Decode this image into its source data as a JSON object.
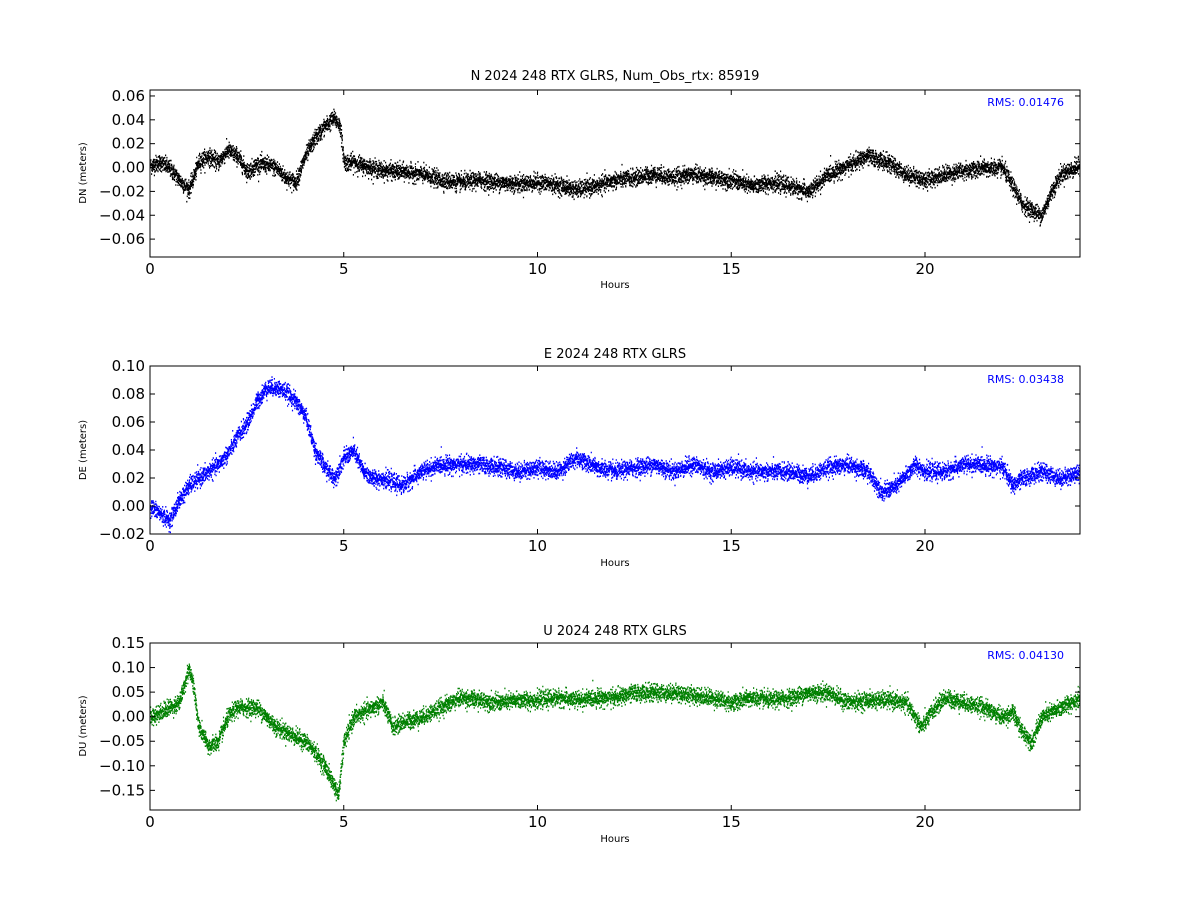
{
  "chart_data": [
    {
      "type": "scatter",
      "title": "N 2024 248 RTX  GLRS, Num_Obs_rtx: 85919",
      "xlabel": "Hours",
      "ylabel": "DN (meters)",
      "xlim": [
        0,
        24
      ],
      "ylim": [
        -0.075,
        0.065
      ],
      "xticks": [
        0,
        5,
        10,
        15,
        20
      ],
      "xtick_labels": [
        "0",
        "5",
        "10",
        "15",
        "20"
      ],
      "yticks": [
        -0.06,
        -0.04,
        -0.02,
        0.0,
        0.02,
        0.04,
        0.06
      ],
      "ytick_labels": [
        "−0.06",
        "−0.04",
        "−0.02",
        "0.00",
        "0.02",
        "0.04",
        "0.06"
      ],
      "annotation": "RMS:  0.01476",
      "annotation_color": "#0000ff",
      "color": "#000000",
      "grid": false,
      "series": [
        {
          "x": [
            0,
            0.25,
            0.5,
            0.75,
            1.0,
            1.25,
            1.5,
            1.75,
            2.0,
            2.25,
            2.5,
            2.75,
            3.0,
            3.25,
            3.5,
            3.75,
            4.0,
            4.25,
            4.5,
            4.75,
            4.9,
            5.0,
            5.25,
            5.5,
            6.0,
            6.5,
            7.0,
            7.5,
            8.0,
            8.5,
            9.0,
            9.5,
            10.0,
            10.5,
            11.0,
            11.5,
            12.0,
            12.5,
            13.0,
            13.5,
            14.0,
            14.5,
            15.0,
            15.5,
            16.0,
            16.5,
            17.0,
            17.5,
            18.0,
            18.5,
            19.0,
            19.5,
            20.0,
            20.5,
            21.0,
            21.5,
            22.0,
            22.5,
            22.75,
            23.0,
            23.25,
            23.5,
            24.0
          ],
          "y": [
            0.002,
            0.005,
            0.0,
            -0.01,
            -0.018,
            0.005,
            0.01,
            0.005,
            0.015,
            0.01,
            -0.003,
            0.003,
            0.003,
            0.0,
            -0.008,
            -0.012,
            0.01,
            0.025,
            0.035,
            0.042,
            0.035,
            0.005,
            0.005,
            0.002,
            -0.002,
            -0.003,
            -0.005,
            -0.01,
            -0.012,
            -0.01,
            -0.012,
            -0.013,
            -0.012,
            -0.014,
            -0.018,
            -0.015,
            -0.01,
            -0.008,
            -0.005,
            -0.008,
            -0.005,
            -0.008,
            -0.01,
            -0.015,
            -0.012,
            -0.015,
            -0.02,
            -0.005,
            0.002,
            0.01,
            0.005,
            -0.005,
            -0.01,
            -0.005,
            -0.002,
            0.0,
            0.0,
            -0.03,
            -0.035,
            -0.04,
            -0.02,
            -0.005,
            0.002
          ]
        }
      ]
    },
    {
      "type": "scatter",
      "title": "E 2024 248 RTX  GLRS",
      "xlabel": "Hours",
      "ylabel": "DE (meters)",
      "xlim": [
        0,
        24
      ],
      "ylim": [
        -0.02,
        0.1
      ],
      "xticks": [
        0,
        5,
        10,
        15,
        20
      ],
      "xtick_labels": [
        "0",
        "5",
        "10",
        "15",
        "20"
      ],
      "yticks": [
        -0.02,
        0.0,
        0.02,
        0.04,
        0.06,
        0.08,
        0.1
      ],
      "ytick_labels": [
        "−0.02",
        "0.00",
        "0.02",
        "0.04",
        "0.06",
        "0.08",
        "0.10"
      ],
      "annotation": "RMS:  0.03438",
      "annotation_color": "#0000ff",
      "color": "#0000ff",
      "grid": false,
      "series": [
        {
          "x": [
            0,
            0.25,
            0.5,
            0.75,
            1.0,
            1.25,
            1.5,
            1.75,
            2.0,
            2.25,
            2.5,
            2.75,
            3.0,
            3.25,
            3.5,
            3.75,
            4.0,
            4.25,
            4.5,
            4.75,
            5.0,
            5.25,
            5.5,
            5.75,
            6.0,
            6.5,
            7.0,
            7.5,
            8.0,
            8.5,
            9.0,
            9.5,
            10.0,
            10.5,
            11.0,
            11.5,
            12.0,
            12.5,
            13.0,
            13.5,
            14.0,
            14.5,
            15.0,
            15.5,
            16.0,
            16.5,
            17.0,
            17.5,
            18.0,
            18.5,
            18.9,
            19.25,
            19.75,
            20.0,
            20.5,
            21.0,
            21.5,
            22.0,
            22.25,
            22.5,
            23.0,
            23.5,
            24.0
          ],
          "y": [
            0.0,
            -0.005,
            -0.01,
            0.005,
            0.015,
            0.02,
            0.025,
            0.03,
            0.038,
            0.05,
            0.06,
            0.075,
            0.085,
            0.085,
            0.082,
            0.075,
            0.065,
            0.04,
            0.028,
            0.02,
            0.035,
            0.04,
            0.025,
            0.02,
            0.02,
            0.015,
            0.025,
            0.03,
            0.03,
            0.03,
            0.028,
            0.025,
            0.028,
            0.025,
            0.035,
            0.028,
            0.025,
            0.028,
            0.03,
            0.025,
            0.03,
            0.025,
            0.028,
            0.025,
            0.025,
            0.025,
            0.022,
            0.028,
            0.03,
            0.025,
            0.01,
            0.015,
            0.03,
            0.025,
            0.025,
            0.03,
            0.03,
            0.028,
            0.015,
            0.02,
            0.025,
            0.02,
            0.025
          ]
        }
      ]
    },
    {
      "type": "scatter",
      "title": "U 2024 248 RTX  GLRS",
      "xlabel": "Hours",
      "ylabel": "DU (meters)",
      "xlim": [
        0,
        24
      ],
      "ylim": [
        -0.19,
        0.15
      ],
      "xticks": [
        0,
        5,
        10,
        15,
        20
      ],
      "xtick_labels": [
        "0",
        "5",
        "10",
        "15",
        "20"
      ],
      "yticks": [
        -0.15,
        -0.1,
        -0.05,
        0.0,
        0.05,
        0.1,
        0.15
      ],
      "ytick_labels": [
        "−0.15",
        "−0.10",
        "−0.05",
        "0.00",
        "0.05",
        "0.10",
        "0.15"
      ],
      "annotation": "RMS:  0.04130",
      "annotation_color": "#0000ff",
      "color": "#008000",
      "grid": false,
      "series": [
        {
          "x": [
            0,
            0.25,
            0.5,
            0.75,
            1.0,
            1.1,
            1.25,
            1.5,
            1.75,
            2.0,
            2.25,
            2.5,
            2.75,
            3.0,
            3.25,
            3.5,
            3.75,
            4.0,
            4.25,
            4.5,
            4.75,
            4.85,
            5.0,
            5.25,
            5.5,
            5.75,
            6.0,
            6.25,
            6.5,
            7.0,
            7.5,
            8.0,
            8.5,
            9.0,
            9.5,
            10.0,
            10.5,
            11.0,
            11.5,
            12.0,
            12.5,
            13.0,
            13.5,
            14.0,
            14.5,
            15.0,
            15.5,
            16.0,
            16.5,
            17.0,
            17.5,
            18.0,
            18.5,
            19.0,
            19.5,
            19.9,
            20.25,
            20.5,
            21.0,
            21.5,
            22.0,
            22.25,
            22.5,
            22.75,
            23.0,
            23.5,
            24.0
          ],
          "y": [
            0.0,
            0.01,
            0.02,
            0.03,
            0.1,
            0.07,
            -0.02,
            -0.06,
            -0.05,
            0.0,
            0.02,
            0.02,
            0.02,
            0.0,
            -0.02,
            -0.03,
            -0.04,
            -0.05,
            -0.07,
            -0.1,
            -0.14,
            -0.16,
            -0.05,
            0.0,
            0.01,
            0.02,
            0.03,
            -0.02,
            -0.01,
            0.0,
            0.02,
            0.04,
            0.035,
            0.03,
            0.035,
            0.035,
            0.04,
            0.035,
            0.04,
            0.04,
            0.05,
            0.05,
            0.05,
            0.045,
            0.04,
            0.03,
            0.04,
            0.035,
            0.04,
            0.05,
            0.05,
            0.03,
            0.035,
            0.035,
            0.03,
            -0.02,
            0.02,
            0.04,
            0.03,
            0.02,
            0.0,
            0.01,
            -0.03,
            -0.05,
            0.0,
            0.02,
            0.04
          ]
        }
      ]
    }
  ]
}
